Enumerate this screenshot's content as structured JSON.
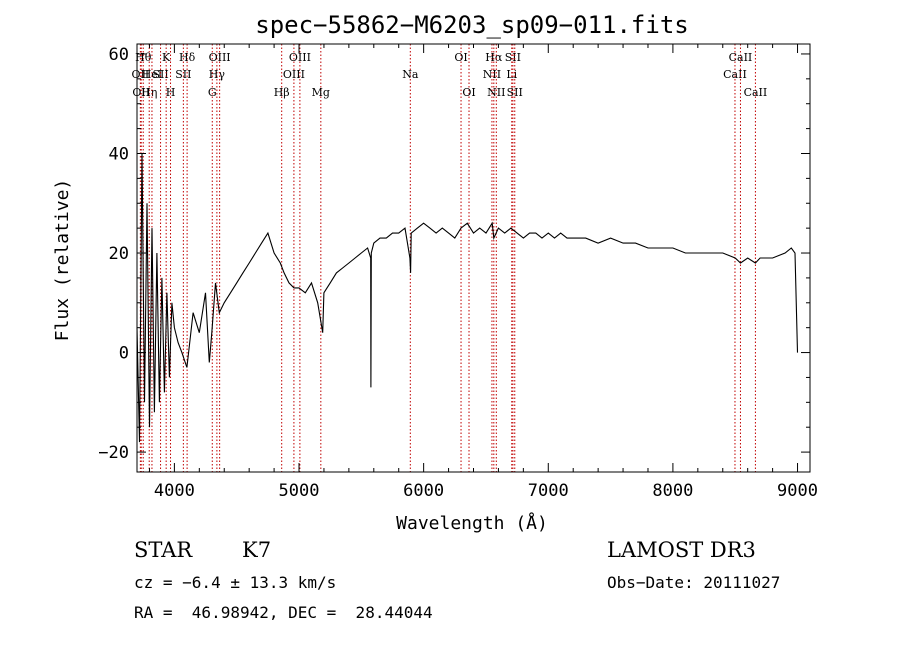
{
  "chart_data": {
    "type": "line",
    "title": "spec−55862−M6203_sp09−011.fits",
    "xlabel": "Wavelength (Å)",
    "ylabel": "Flux (relative)",
    "xlim": [
      3700,
      9100
    ],
    "ylim": [
      -24,
      62
    ],
    "xticks": [
      4000,
      5000,
      6000,
      7000,
      8000,
      9000
    ],
    "xtick_labels": [
      "4000",
      "5000",
      "6000",
      "7000",
      "8000",
      "9000"
    ],
    "yticks": [
      -20,
      0,
      20,
      40,
      60
    ],
    "ytick_labels": [
      "−20",
      "0",
      "20",
      "40",
      "60"
    ],
    "grid": false,
    "series": [
      {
        "name": "flux",
        "x": [
          3700,
          3720,
          3740,
          3760,
          3780,
          3800,
          3820,
          3840,
          3860,
          3880,
          3900,
          3920,
          3940,
          3960,
          3980,
          4000,
          4030,
          4060,
          4100,
          4150,
          4200,
          4250,
          4280,
          4300,
          4330,
          4360,
          4400,
          4450,
          4500,
          4550,
          4600,
          4650,
          4700,
          4750,
          4800,
          4850,
          4880,
          4920,
          4960,
          5000,
          5050,
          5100,
          5150,
          5190,
          5200,
          5250,
          5300,
          5350,
          5400,
          5450,
          5500,
          5550,
          5575,
          5577,
          5580,
          5600,
          5650,
          5700,
          5750,
          5800,
          5850,
          5890,
          5895,
          5900,
          5950,
          6000,
          6050,
          6100,
          6150,
          6200,
          6250,
          6300,
          6350,
          6400,
          6450,
          6500,
          6550,
          6563,
          6600,
          6650,
          6700,
          6750,
          6800,
          6850,
          6900,
          6950,
          7000,
          7050,
          7100,
          7150,
          7200,
          7300,
          7400,
          7500,
          7600,
          7700,
          7800,
          7900,
          8000,
          8100,
          8200,
          8300,
          8400,
          8500,
          8542,
          8600,
          8662,
          8700,
          8800,
          8900,
          8950,
          8980,
          9000
        ],
        "values": [
          5,
          -18,
          40,
          -10,
          30,
          -15,
          25,
          -12,
          20,
          -10,
          15,
          -8,
          12,
          -5,
          10,
          5,
          2,
          0,
          -3,
          8,
          4,
          12,
          -2,
          4,
          14,
          8,
          10,
          12,
          14,
          16,
          18,
          20,
          22,
          24,
          20,
          18,
          16,
          14,
          13,
          13,
          12,
          14,
          10,
          4,
          12,
          14,
          16,
          17,
          18,
          19,
          20,
          21,
          19,
          -7,
          20,
          22,
          23,
          23,
          24,
          24,
          25,
          19,
          16,
          24,
          25,
          26,
          25,
          24,
          25,
          24,
          23,
          25,
          26,
          24,
          25,
          24,
          26,
          23,
          25,
          24,
          25,
          24,
          23,
          24,
          24,
          23,
          24,
          23,
          24,
          23,
          23,
          23,
          22,
          23,
          22,
          22,
          21,
          21,
          21,
          20,
          20,
          20,
          20,
          19,
          18,
          19,
          18,
          19,
          19,
          20,
          21,
          20,
          0
        ]
      }
    ],
    "line_markers": [
      {
        "wl": 3727,
        "label": "OII",
        "row": 2
      },
      {
        "wl": 3734,
        "label": "OII",
        "row": 3
      },
      {
        "wl": 3750,
        "label": "Hθ",
        "row": 1
      },
      {
        "wl": 3798,
        "label": "Hη",
        "row": 3
      },
      {
        "wl": 3820,
        "label": "HeI",
        "row": 2
      },
      {
        "wl": 3889,
        "label": "SII",
        "row": 2
      },
      {
        "wl": 3934,
        "label": "K",
        "row": 1
      },
      {
        "wl": 3969,
        "label": "H",
        "row": 3
      },
      {
        "wl": 4072,
        "label": "SII",
        "row": 2
      },
      {
        "wl": 4102,
        "label": "Hδ",
        "row": 1
      },
      {
        "wl": 4304,
        "label": "G",
        "row": 3
      },
      {
        "wl": 4341,
        "label": "Hγ",
        "row": 2
      },
      {
        "wl": 4363,
        "label": "OIII",
        "row": 1
      },
      {
        "wl": 4861,
        "label": "Hβ",
        "row": 3
      },
      {
        "wl": 4959,
        "label": "OIII",
        "row": 2
      },
      {
        "wl": 5007,
        "label": "OIII",
        "row": 1
      },
      {
        "wl": 5175,
        "label": "Mg",
        "row": 3
      },
      {
        "wl": 5893,
        "label": "Na",
        "row": 2
      },
      {
        "wl": 6300,
        "label": "OI",
        "row": 1
      },
      {
        "wl": 6364,
        "label": "OI",
        "row": 3
      },
      {
        "wl": 6548,
        "label": "NII",
        "row": 2
      },
      {
        "wl": 6563,
        "label": "Hα",
        "row": 1
      },
      {
        "wl": 6583,
        "label": "NII",
        "row": 3
      },
      {
        "wl": 6707,
        "label": "Li",
        "row": 2
      },
      {
        "wl": 6716,
        "label": "SII",
        "row": 1
      },
      {
        "wl": 6731,
        "label": "SII",
        "row": 3
      },
      {
        "wl": 8498,
        "label": "CaII",
        "row": 2
      },
      {
        "wl": 8542,
        "label": "CaII",
        "row": 1
      },
      {
        "wl": 8662,
        "label": "CaII",
        "row": 3
      }
    ]
  },
  "info": {
    "class": "STAR",
    "subclass": "K7",
    "cz": "cz = −6.4 ± 13.3 km/s",
    "radec": "RA =  46.98942, DEC =  28.44044",
    "survey": "LAMOST DR3",
    "obsdate": "Obs−Date: 20111027"
  }
}
